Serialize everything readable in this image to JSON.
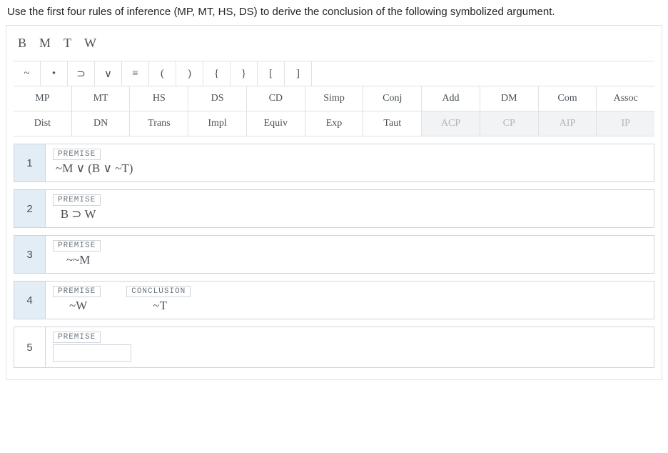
{
  "prompt": "Use the first four rules of inference (MP, MT, HS, DS) to derive the conclusion of the following symbolized argument.",
  "letters": [
    "B",
    "M",
    "T",
    "W"
  ],
  "symbols": [
    "~",
    "•",
    "⊃",
    "∨",
    "≡",
    "(",
    ")",
    "{",
    "}",
    "[",
    "]"
  ],
  "rules_row1": [
    {
      "label": "MP",
      "disabled": false
    },
    {
      "label": "MT",
      "disabled": false
    },
    {
      "label": "HS",
      "disabled": false
    },
    {
      "label": "DS",
      "disabled": false
    },
    {
      "label": "CD",
      "disabled": false
    },
    {
      "label": "Simp",
      "disabled": false
    },
    {
      "label": "Conj",
      "disabled": false
    },
    {
      "label": "Add",
      "disabled": false
    },
    {
      "label": "DM",
      "disabled": false
    },
    {
      "label": "Com",
      "disabled": false
    },
    {
      "label": "Assoc",
      "disabled": false
    }
  ],
  "rules_row2": [
    {
      "label": "Dist",
      "disabled": false
    },
    {
      "label": "DN",
      "disabled": false
    },
    {
      "label": "Trans",
      "disabled": false
    },
    {
      "label": "Impl",
      "disabled": false
    },
    {
      "label": "Equiv",
      "disabled": false
    },
    {
      "label": "Exp",
      "disabled": false
    },
    {
      "label": "Taut",
      "disabled": false
    },
    {
      "label": "ACP",
      "disabled": true
    },
    {
      "label": "CP",
      "disabled": true
    },
    {
      "label": "AIP",
      "disabled": true
    },
    {
      "label": "IP",
      "disabled": true
    }
  ],
  "tag_premise": "PREMISE",
  "tag_conclusion": "CONCLUSION",
  "lines": {
    "l1": {
      "num": "1",
      "filled": true,
      "tag": "PREMISE",
      "expr": "~M ∨ (B ∨ ~T)"
    },
    "l2": {
      "num": "2",
      "filled": true,
      "tag": "PREMISE",
      "expr": "B ⊃ W"
    },
    "l3": {
      "num": "3",
      "filled": true,
      "tag": "PREMISE",
      "expr": "~~M"
    },
    "l4": {
      "num": "4",
      "filled": true,
      "tag": "PREMISE",
      "expr": "~W",
      "conclusion": "~T"
    },
    "l5": {
      "num": "5",
      "filled": false,
      "tag": "PREMISE",
      "expr": ""
    }
  }
}
